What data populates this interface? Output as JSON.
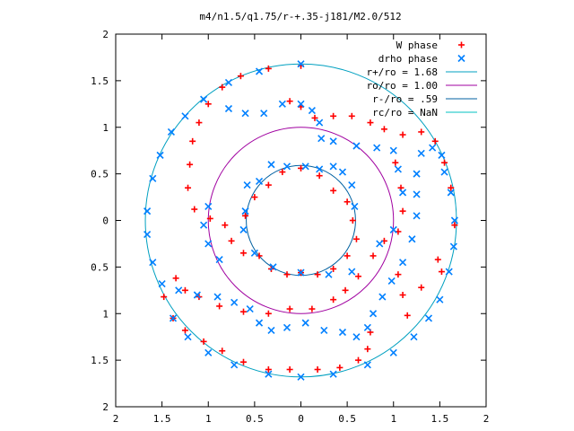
{
  "chart_data": {
    "type": "scatter",
    "title": "m4/n1.5/q1.75/r-+.35-j181/M2.0/512",
    "xlim": [
      -2,
      2
    ],
    "ylim": [
      -2,
      2
    ],
    "x_tick_values": [
      -2,
      -1.5,
      -1,
      -0.5,
      0,
      0.5,
      1,
      1.5,
      2
    ],
    "x_tick_labels": [
      "2",
      "1.5",
      "1",
      "0.5",
      "0",
      "0.5",
      "1",
      "1.5",
      "2"
    ],
    "y_tick_values": [
      2,
      1.5,
      1,
      0.5,
      0,
      -0.5,
      -1,
      -1.5,
      -2
    ],
    "y_tick_labels": [
      "2",
      "1.5",
      "1",
      "0.5",
      "0",
      "0.5",
      "1",
      "1.5",
      "2"
    ],
    "grid": false,
    "legend_position": "top-right",
    "legend": [
      {
        "label": "W phase",
        "color": "#ff0000",
        "marker": "+"
      },
      {
        "label": "drho phase",
        "color": "#0080ff",
        "marker": "x"
      },
      {
        "label": "r+/ro = 1.68",
        "color": "#00a0c0",
        "marker": "line"
      },
      {
        "label": "ro/ro = 1.00",
        "color": "#a000a0",
        "marker": "line"
      },
      {
        "label": "r-/ro = .59",
        "color": "#0060a0",
        "marker": "line"
      },
      {
        "label": "rc/ro = NaN",
        "color": "#00c0c0",
        "marker": "line"
      }
    ],
    "circles": [
      {
        "name": "r+/ro = 1.68",
        "radius": 1.68,
        "color": "#00a0c0"
      },
      {
        "name": "ro/ro = 1.00",
        "radius": 1.0,
        "color": "#a000a0"
      },
      {
        "name": "r-/ro = .59",
        "radius": 0.59,
        "color": "#0060a0"
      }
    ],
    "series": [
      {
        "name": "W phase",
        "color": "#ff0000",
        "marker": "+",
        "points": [
          [
            0.0,
            1.66
          ],
          [
            -0.35,
            1.63
          ],
          [
            -0.65,
            1.55
          ],
          [
            -0.85,
            1.43
          ],
          [
            -1.0,
            1.25
          ],
          [
            -1.1,
            1.05
          ],
          [
            -1.17,
            0.85
          ],
          [
            -1.2,
            0.6
          ],
          [
            -1.22,
            0.35
          ],
          [
            -1.15,
            0.12
          ],
          [
            -0.98,
            0.02
          ],
          [
            -0.82,
            -0.05
          ],
          [
            -0.75,
            -0.22
          ],
          [
            -0.62,
            -0.35
          ],
          [
            -0.45,
            -0.38
          ],
          [
            -0.32,
            -0.52
          ],
          [
            -0.15,
            -0.58
          ],
          [
            0.0,
            -0.56
          ],
          [
            0.18,
            -0.58
          ],
          [
            0.35,
            -0.52
          ],
          [
            0.5,
            -0.38
          ],
          [
            0.6,
            -0.2
          ],
          [
            0.56,
            0.0
          ],
          [
            0.5,
            0.2
          ],
          [
            0.35,
            0.32
          ],
          [
            0.2,
            0.48
          ],
          [
            0.0,
            0.56
          ],
          [
            -0.2,
            0.52
          ],
          [
            -0.35,
            0.38
          ],
          [
            -0.5,
            0.25
          ],
          [
            -0.6,
            0.05
          ],
          [
            1.66,
            -0.05
          ],
          [
            1.62,
            0.35
          ],
          [
            1.55,
            0.62
          ],
          [
            1.45,
            0.85
          ],
          [
            1.3,
            0.95
          ],
          [
            1.1,
            0.92
          ],
          [
            0.9,
            0.98
          ],
          [
            0.75,
            1.05
          ],
          [
            0.55,
            1.12
          ],
          [
            0.35,
            1.12
          ],
          [
            0.15,
            1.1
          ],
          [
            0.0,
            1.22
          ],
          [
            -0.12,
            1.28
          ],
          [
            1.02,
            0.62
          ],
          [
            1.08,
            0.35
          ],
          [
            1.1,
            0.1
          ],
          [
            1.05,
            -0.12
          ],
          [
            0.9,
            -0.22
          ],
          [
            0.78,
            -0.38
          ],
          [
            0.62,
            -0.6
          ],
          [
            0.48,
            -0.75
          ],
          [
            0.35,
            -0.85
          ],
          [
            0.12,
            -0.95
          ],
          [
            -0.12,
            -0.95
          ],
          [
            -0.35,
            -1.0
          ],
          [
            -0.62,
            -0.98
          ],
          [
            -0.88,
            -0.92
          ],
          [
            -1.1,
            -0.82
          ],
          [
            -1.25,
            -0.75
          ],
          [
            -1.35,
            -0.62
          ],
          [
            0.75,
            -1.2
          ],
          [
            0.72,
            -1.38
          ],
          [
            0.62,
            -1.5
          ],
          [
            0.42,
            -1.58
          ],
          [
            0.18,
            -1.6
          ],
          [
            -0.12,
            -1.6
          ],
          [
            -0.35,
            -1.6
          ],
          [
            -0.62,
            -1.52
          ],
          [
            -0.85,
            -1.4
          ],
          [
            -1.05,
            -1.3
          ],
          [
            -1.25,
            -1.18
          ],
          [
            -1.38,
            -1.05
          ],
          [
            -1.48,
            -0.82
          ],
          [
            1.05,
            -0.58
          ],
          [
            1.1,
            -0.8
          ],
          [
            1.15,
            -1.02
          ],
          [
            1.3,
            -0.72
          ],
          [
            1.48,
            -0.42
          ],
          [
            1.52,
            -0.55
          ]
        ]
      },
      {
        "name": "drho phase",
        "color": "#0080ff",
        "marker": "x",
        "points": [
          [
            0.0,
            1.68
          ],
          [
            -0.45,
            1.6
          ],
          [
            -0.78,
            1.48
          ],
          [
            -1.05,
            1.3
          ],
          [
            -1.25,
            1.12
          ],
          [
            -1.4,
            0.95
          ],
          [
            -1.52,
            0.7
          ],
          [
            -1.6,
            0.45
          ],
          [
            -1.66,
            0.1
          ],
          [
            -1.66,
            -0.15
          ],
          [
            -1.6,
            -0.45
          ],
          [
            -1.5,
            -0.68
          ],
          [
            -1.32,
            -0.75
          ],
          [
            -1.12,
            -0.8
          ],
          [
            -0.9,
            -0.82
          ],
          [
            -0.72,
            -0.88
          ],
          [
            -0.55,
            -0.95
          ],
          [
            -0.45,
            -1.1
          ],
          [
            -0.32,
            -1.18
          ],
          [
            -0.15,
            -1.15
          ],
          [
            0.05,
            -1.1
          ],
          [
            0.25,
            -1.18
          ],
          [
            0.45,
            -1.2
          ],
          [
            0.6,
            -1.25
          ],
          [
            0.72,
            -1.15
          ],
          [
            0.78,
            -1.0
          ],
          [
            0.88,
            -0.82
          ],
          [
            0.98,
            -0.65
          ],
          [
            1.1,
            -0.45
          ],
          [
            1.2,
            -0.2
          ],
          [
            1.25,
            0.05
          ],
          [
            1.25,
            0.28
          ],
          [
            1.25,
            0.5
          ],
          [
            1.3,
            0.72
          ],
          [
            1.42,
            0.78
          ],
          [
            1.52,
            0.7
          ],
          [
            1.55,
            0.52
          ],
          [
            1.62,
            0.3
          ],
          [
            1.66,
            0.0
          ],
          [
            1.65,
            -0.28
          ],
          [
            1.6,
            -0.55
          ],
          [
            1.5,
            -0.85
          ],
          [
            1.38,
            -1.05
          ],
          [
            1.22,
            -1.25
          ],
          [
            1.0,
            -1.42
          ],
          [
            0.72,
            -1.55
          ],
          [
            0.35,
            -1.65
          ],
          [
            0.0,
            -1.68
          ],
          [
            -0.35,
            -1.65
          ],
          [
            -0.72,
            -1.55
          ],
          [
            -1.0,
            -1.42
          ],
          [
            -1.22,
            -1.25
          ],
          [
            -1.38,
            -1.05
          ],
          [
            -0.78,
            1.2
          ],
          [
            -0.6,
            1.15
          ],
          [
            -0.4,
            1.15
          ],
          [
            -0.2,
            1.25
          ],
          [
            0.0,
            1.25
          ],
          [
            0.12,
            1.18
          ],
          [
            0.2,
            1.05
          ],
          [
            0.22,
            0.88
          ],
          [
            0.35,
            0.85
          ],
          [
            0.6,
            0.8
          ],
          [
            0.82,
            0.78
          ],
          [
            1.0,
            0.75
          ],
          [
            1.05,
            0.55
          ],
          [
            1.1,
            0.3
          ],
          [
            1.0,
            -0.1
          ],
          [
            0.85,
            -0.25
          ],
          [
            0.55,
            -0.55
          ],
          [
            0.3,
            -0.58
          ],
          [
            0.0,
            -0.56
          ],
          [
            -0.3,
            -0.5
          ],
          [
            -0.5,
            -0.35
          ],
          [
            -0.62,
            -0.1
          ],
          [
            -0.6,
            0.1
          ],
          [
            -0.58,
            0.38
          ],
          [
            -0.45,
            0.42
          ],
          [
            -0.32,
            0.6
          ],
          [
            -0.15,
            0.58
          ],
          [
            0.05,
            0.58
          ],
          [
            0.2,
            0.55
          ],
          [
            0.35,
            0.58
          ],
          [
            0.45,
            0.52
          ],
          [
            0.55,
            0.38
          ],
          [
            0.58,
            0.15
          ],
          [
            -1.0,
            0.15
          ],
          [
            -1.05,
            -0.05
          ],
          [
            -1.0,
            -0.25
          ],
          [
            -0.88,
            -0.42
          ]
        ]
      }
    ]
  }
}
